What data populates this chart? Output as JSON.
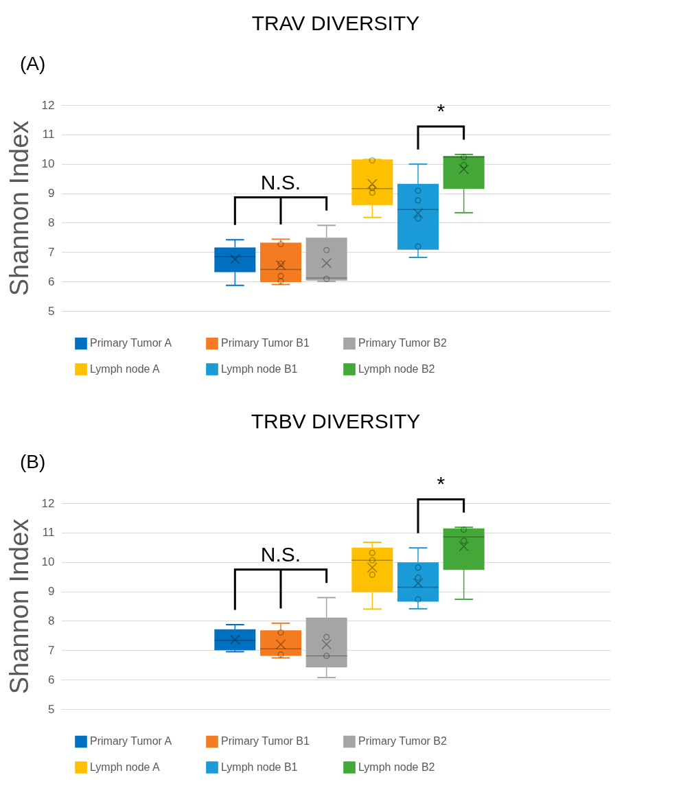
{
  "chart_data": [
    {
      "type": "box",
      "title": "TRAV  DIVERSITY",
      "ylabel": "Shannon Index",
      "categories": [
        null
      ],
      "ylim": [
        5,
        12
      ],
      "yticks": [
        5,
        6,
        7,
        8,
        9,
        10,
        11,
        12
      ],
      "grid": "y",
      "legend": "bottom",
      "annotations": [
        "(A)",
        "N.S.",
        "*"
      ],
      "series": [
        {
          "name": "Primary Tumor A",
          "color": "#0070c0",
          "boxes": [
            {
              "low": 5.87,
              "q1": 6.32,
              "median": 6.85,
              "q3": 7.16,
              "high": 7.42,
              "mean": 6.76
            }
          ]
        },
        {
          "name": "Primary Tumor B1",
          "color": "#f47b20",
          "boxes": [
            {
              "low": 5.9,
              "q1": 5.98,
              "median": 6.41,
              "q3": 7.32,
              "high": 7.44,
              "mean": 6.56,
              "outliers": [
                7.27,
                6.6,
                6.19,
                6.01
              ]
            }
          ]
        },
        {
          "name": "Primary Tumor B2",
          "color": "#a5a5a5",
          "boxes": [
            {
              "low": 6.0,
              "q1": 6.03,
              "median": 6.12,
              "q3": 7.49,
              "high": 7.91,
              "mean": 6.63,
              "outliers": [
                7.07,
                6.09
              ]
            }
          ]
        },
        {
          "name": "Lymph node A",
          "color": "#ffc000",
          "boxes": [
            {
              "low": 8.18,
              "q1": 8.6,
              "median": 9.16,
              "q3": 10.15,
              "high": 10.15,
              "mean": 9.32,
              "outliers": [
                10.12,
                9.18,
                9.02
              ]
            }
          ]
        },
        {
          "name": "Lymph node B1",
          "color": "#1a9bd7",
          "boxes": [
            {
              "low": 6.82,
              "q1": 7.08,
              "median": 8.45,
              "q3": 9.32,
              "high": 9.99,
              "mean": 8.32,
              "outliers": [
                9.09,
                8.76,
                8.14,
                7.19
              ]
            }
          ]
        },
        {
          "name": "Lymph node B2",
          "color": "#43a838",
          "boxes": [
            {
              "low": 8.34,
              "q1": 9.15,
              "median": 10.23,
              "q3": 10.27,
              "high": 10.32,
              "mean": 9.82,
              "outliers": [
                10.23,
                9.96
              ]
            }
          ]
        }
      ]
    },
    {
      "type": "box",
      "title": "TRBV  DIVERSITY",
      "ylabel": "Shannon Index",
      "categories": [
        null
      ],
      "ylim": [
        5,
        12
      ],
      "yticks": [
        5,
        6,
        7,
        8,
        9,
        10,
        11,
        12
      ],
      "grid": "y",
      "legend": "bottom",
      "annotations": [
        "(B)",
        "N.S.",
        "*"
      ],
      "series": [
        {
          "name": "Primary Tumor A",
          "color": "#0070c0",
          "boxes": [
            {
              "low": 6.95,
              "q1": 7.0,
              "median": 7.34,
              "q3": 7.71,
              "high": 7.87,
              "mean": 7.36
            }
          ]
        },
        {
          "name": "Primary Tumor B1",
          "color": "#f47b20",
          "boxes": [
            {
              "low": 6.74,
              "q1": 6.81,
              "median": 7.05,
              "q3": 7.68,
              "high": 7.92,
              "mean": 7.2,
              "outliers": [
                7.6,
                6.85
              ]
            }
          ]
        },
        {
          "name": "Primary Tumor B2",
          "color": "#a5a5a5",
          "boxes": [
            {
              "low": 6.07,
              "q1": 6.42,
              "median": 6.81,
              "q3": 8.11,
              "high": 8.79,
              "mean": 7.2,
              "outliers": [
                7.45,
                6.81
              ]
            }
          ]
        },
        {
          "name": "Lymph node A",
          "color": "#ffc000",
          "boxes": [
            {
              "low": 8.4,
              "q1": 8.98,
              "median": 10.06,
              "q3": 10.49,
              "high": 10.67,
              "mean": 9.81,
              "outliers": [
                10.31,
                10.06,
                9.57
              ]
            }
          ]
        },
        {
          "name": "Lymph node B1",
          "color": "#1a9bd7",
          "boxes": [
            {
              "low": 8.41,
              "q1": 8.65,
              "median": 9.14,
              "q3": 9.99,
              "high": 10.48,
              "mean": 9.28,
              "outliers": [
                9.81,
                9.47,
                8.73
              ]
            }
          ]
        },
        {
          "name": "Lymph node B2",
          "color": "#43a838",
          "boxes": [
            {
              "low": 8.73,
              "q1": 9.73,
              "median": 10.85,
              "q3": 11.14,
              "high": 11.18,
              "mean": 10.53,
              "outliers": [
                11.1,
                10.72
              ]
            }
          ]
        }
      ]
    }
  ]
}
